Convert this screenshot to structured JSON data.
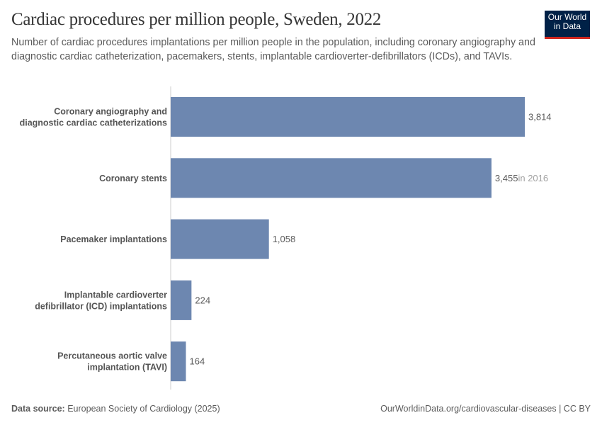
{
  "header": {
    "title": "Cardiac procedures per million people, Sweden, 2022",
    "subtitle": "Number of cardiac procedures implantations per million people in the population, including coronary angiography and diagnostic cardiac catheterization, pacemakers, stents, implantable cardioverter-defibrillators (ICDs), and TAVIs.",
    "logo_line1": "Our World",
    "logo_line2": "in Data"
  },
  "chart_data": {
    "type": "bar",
    "orientation": "horizontal",
    "title": "Cardiac procedures per million people, Sweden, 2022",
    "categories": [
      [
        "Coronary angiography and",
        "diagnostic cardiac catheterizations"
      ],
      [
        "Coronary stents"
      ],
      [
        "Pacemaker implantations"
      ],
      [
        "Implantable cardioverter",
        "defibrillator (ICD) implantations"
      ],
      [
        "Percutaneous aortic valve",
        "implantation (TAVI)"
      ]
    ],
    "values": [
      3814,
      3455,
      1058,
      224,
      164
    ],
    "value_labels": [
      "3,814",
      "3,455",
      "1,058",
      "224",
      "164"
    ],
    "notes": [
      "",
      "in 2016",
      "",
      "",
      ""
    ],
    "xlim": [
      0,
      3814
    ],
    "bar_color": "#6d87b0",
    "grid": false
  },
  "footer": {
    "source_label": "Data source:",
    "source": "European Society of Cardiology (2025)",
    "url": "OurWorldinData.org/cardiovascular-diseases | CC BY"
  }
}
